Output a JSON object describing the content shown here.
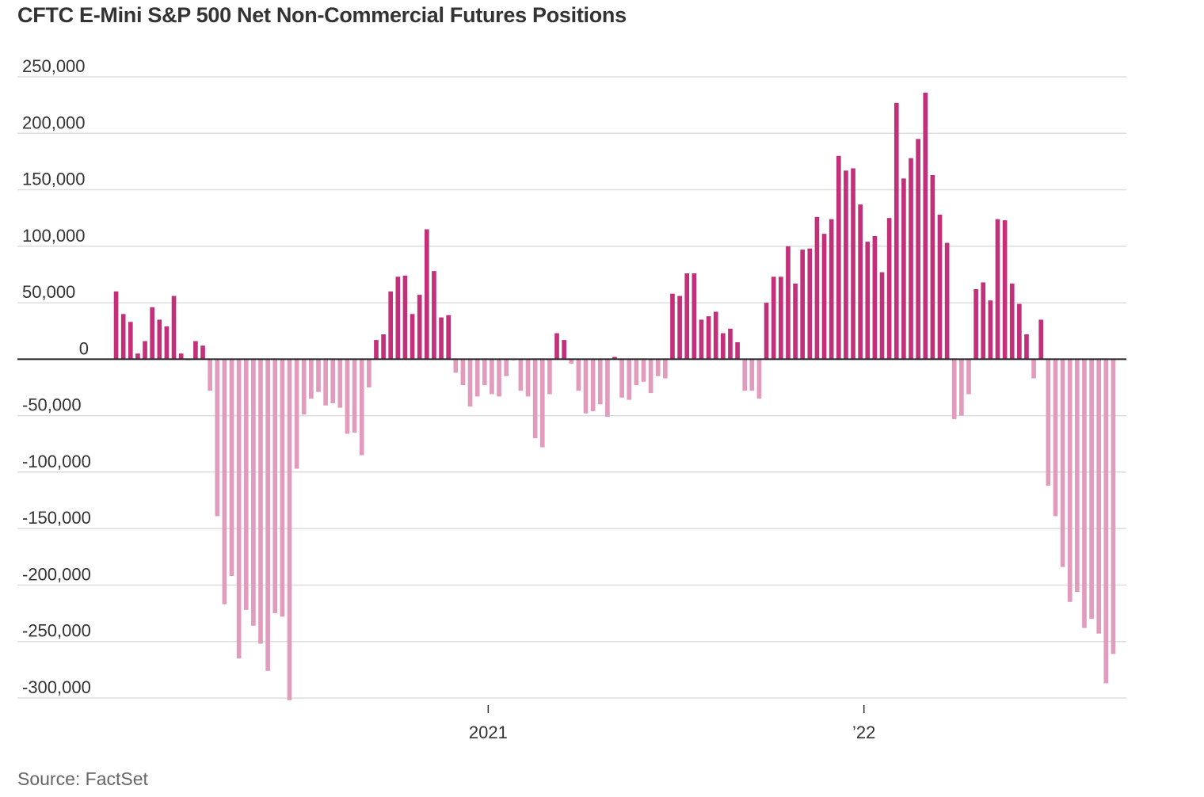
{
  "title": "CFTC E-Mini S&P 500 Net Non-Commercial Futures Positions",
  "source": "Source: FactSet",
  "colors": {
    "positive": "#c2307a",
    "negative": "#e09bbd",
    "grid": "#dddddd",
    "zero": "#222222"
  },
  "chart_data": {
    "type": "bar",
    "title": "CFTC E-Mini S&P 500 Net Non-Commercial Futures Positions",
    "xlabel": "",
    "ylabel": "",
    "ylim": [
      -300000,
      250000
    ],
    "yticks": [
      {
        "value": 250000,
        "label": "250,000"
      },
      {
        "value": 200000,
        "label": "200,000"
      },
      {
        "value": 150000,
        "label": "150,000"
      },
      {
        "value": 100000,
        "label": "100,000"
      },
      {
        "value": 50000,
        "label": "50,000"
      },
      {
        "value": 0,
        "label": "0"
      },
      {
        "value": -50000,
        "label": "-50,000"
      },
      {
        "value": -100000,
        "label": "-100,000"
      },
      {
        "value": -150000,
        "label": "-150,000"
      },
      {
        "value": -200000,
        "label": "-200,000"
      },
      {
        "value": -250000,
        "label": "-250,000"
      },
      {
        "value": -300000,
        "label": "-300,000"
      }
    ],
    "xticks": [
      {
        "index": 52,
        "label": "2021"
      },
      {
        "index": 104,
        "label": "’22"
      }
    ],
    "grid": true,
    "series": [
      {
        "values": [
          60000,
          40000,
          33000,
          5000,
          16000,
          46000,
          35000,
          29000,
          56000,
          5000,
          -1000,
          16000,
          12000,
          -28000,
          -139000,
          -217000,
          -192000,
          -265000,
          -222000,
          -236000,
          -252000,
          -276000,
          -225000,
          -228000,
          -302000,
          -97000,
          -49000,
          -35000,
          -29000,
          -41000,
          -39000,
          -43000,
          -66000,
          -65000,
          -85000,
          -25000,
          17000,
          22000,
          60000,
          73000,
          74000,
          40000,
          57000,
          115000,
          78000,
          37000,
          39000,
          -12000,
          -23000,
          -42000,
          -33000,
          -23000,
          -31000,
          -33000,
          -15000,
          -1000,
          -28000,
          -33000,
          -70000,
          -78000,
          -31000,
          23000,
          17000,
          -4000,
          -28000,
          -48000,
          -46000,
          -40000,
          -51000,
          2000,
          -34000,
          -36000,
          -23000,
          -20000,
          -30000,
          -15000,
          -17000,
          58000,
          56000,
          76000,
          76000,
          35000,
          38000,
          42000,
          23000,
          27000,
          15000,
          -28000,
          -28000,
          -35000,
          50000,
          73000,
          73000,
          100000,
          67000,
          97000,
          98000,
          126000,
          111000,
          124000,
          180000,
          167000,
          169000,
          137000,
          104000,
          109000,
          77000,
          125000,
          227000,
          160000,
          178000,
          195000,
          236000,
          163000,
          128000,
          103000,
          -53000,
          -50000,
          -31000,
          62000,
          68000,
          52000,
          124000,
          123000,
          67000,
          49000,
          22000,
          -17000,
          35000,
          -112000,
          -139000,
          -184000,
          -215000,
          -206000,
          -238000,
          -230000,
          -243000,
          -287000,
          -261000
        ]
      }
    ]
  }
}
